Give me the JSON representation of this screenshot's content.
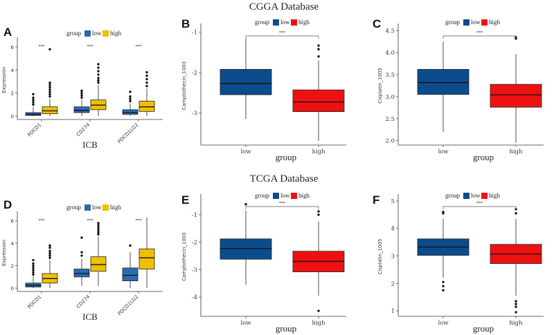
{
  "titles": {
    "top": "CGGA Database",
    "bottom": "TCGA Database"
  },
  "colors": {
    "low_small": "#2b6cb0",
    "high_small": "#f0c000",
    "low": "#0b4c8c",
    "high": "#ee1111"
  },
  "chart_data": [
    {
      "panel": "A",
      "type": "boxplot",
      "database": "CGGA",
      "categories": [
        "PDCD1",
        "CD274",
        "PDCD1LG2"
      ],
      "xlabel": "ICB",
      "ylabel": "Expression",
      "ylim": [
        -0.3,
        6.6
      ],
      "yticks": [
        0,
        2,
        4,
        6
      ],
      "legend": {
        "title": "group",
        "entries": [
          "low",
          "high"
        ],
        "placement": "top"
      },
      "significance": [
        "***",
        "***",
        "***"
      ],
      "series": [
        {
          "name": "low",
          "boxes": [
            {
              "min": 0,
              "q1": 0.05,
              "median": 0.15,
              "q3": 0.3,
              "max": 0.8,
              "outliers": [
                1,
                1.2,
                1.4,
                1.6,
                1.9
              ]
            },
            {
              "min": 0,
              "q1": 0.3,
              "median": 0.5,
              "q3": 0.8,
              "max": 1.4,
              "outliers": [
                1.6,
                1.8,
                2,
                2.2
              ]
            },
            {
              "min": 0,
              "q1": 0.15,
              "median": 0.3,
              "q3": 0.55,
              "max": 1.1,
              "outliers": [
                1.3,
                1.5,
                1.7,
                2.1
              ]
            }
          ]
        },
        {
          "name": "high",
          "boxes": [
            {
              "min": 0,
              "q1": 0.2,
              "median": 0.45,
              "q3": 0.8,
              "max": 1.5,
              "outliers": [
                1.7,
                1.9,
                2.1,
                2.3,
                2.5,
                2.7,
                2.9,
                5.8
              ]
            },
            {
              "min": 0,
              "q1": 0.55,
              "median": 0.95,
              "q3": 1.4,
              "max": 2.7,
              "outliers": [
                2.9,
                3.1,
                3.3,
                3.6,
                3.9,
                4.2,
                4.5
              ]
            },
            {
              "min": 0,
              "q1": 0.4,
              "median": 0.8,
              "q3": 1.3,
              "max": 2.4,
              "outliers": [
                2.6,
                2.9,
                3.2,
                3.5,
                3.8
              ]
            }
          ]
        }
      ]
    },
    {
      "panel": "B",
      "type": "boxplot",
      "database": "CGGA",
      "categories": [
        "low",
        "high"
      ],
      "xlabel": "group",
      "ylabel": "Camptothecin_1003",
      "ylim": [
        -3.8,
        -0.85
      ],
      "yticks": [
        -1,
        -2,
        -3
      ],
      "legend": {
        "title": "group",
        "entries": [
          "low",
          "high"
        ]
      },
      "significance": "***",
      "boxes": [
        {
          "name": "low",
          "min": -3.15,
          "q1": -2.55,
          "median": -2.27,
          "q3": -1.92,
          "max": -1.15,
          "outliers": []
        },
        {
          "name": "high",
          "min": -3.7,
          "q1": -2.97,
          "median": -2.73,
          "q3": -2.43,
          "max": -1.7,
          "outliers": [
            -1.6,
            -1.42,
            -1.33
          ]
        }
      ]
    },
    {
      "panel": "C",
      "type": "boxplot",
      "database": "CGGA",
      "categories": [
        "low",
        "high"
      ],
      "xlabel": "group",
      "ylabel": "Cisplatin_1005",
      "ylim": [
        1.9,
        4.6
      ],
      "yticks": [
        2.0,
        2.5,
        3.0,
        3.5,
        4.0,
        4.5
      ],
      "legend": {
        "title": "group",
        "entries": [
          "low",
          "high"
        ]
      },
      "significance": "***",
      "boxes": [
        {
          "name": "low",
          "min": 2.2,
          "q1": 3.05,
          "median": 3.32,
          "q3": 3.62,
          "max": 4.25,
          "outliers": []
        },
        {
          "name": "high",
          "min": 1.95,
          "q1": 2.76,
          "median": 3.04,
          "q3": 3.28,
          "max": 3.97,
          "outliers": [
            4.32,
            4.35
          ]
        }
      ]
    },
    {
      "panel": "D",
      "type": "boxplot",
      "database": "TCGA",
      "categories": [
        "PDCD1",
        "CD274",
        "PDCD1LG2"
      ],
      "xlabel": "ICB",
      "ylabel": "Expression",
      "ylim": [
        -0.3,
        6.6
      ],
      "yticks": [
        0,
        2,
        4,
        6
      ],
      "legend": {
        "title": "group",
        "entries": [
          "low",
          "high"
        ],
        "placement": "top"
      },
      "significance": [
        "***",
        "***",
        "***"
      ],
      "series": [
        {
          "name": "low",
          "boxes": [
            {
              "min": 0,
              "q1": 0.1,
              "median": 0.25,
              "q3": 0.45,
              "max": 1,
              "outliers": [
                1.2,
                1.4,
                1.6,
                1.8,
                2,
                2.2,
                2.5
              ]
            },
            {
              "min": 0.2,
              "q1": 1.0,
              "median": 1.3,
              "q3": 1.7,
              "max": 2.6,
              "outliers": [
                2.9,
                3.2,
                4.5
              ]
            },
            {
              "min": 0,
              "q1": 0.65,
              "median": 1.15,
              "q3": 1.8,
              "max": 3.2,
              "outliers": [
                3.8
              ]
            }
          ]
        },
        {
          "name": "high",
          "boxes": [
            {
              "min": 0,
              "q1": 0.45,
              "median": 0.85,
              "q3": 1.3,
              "max": 2.5,
              "outliers": [
                2.7,
                2.9,
                3.1,
                3.3,
                3.6,
                3.8
              ]
            },
            {
              "min": 0.2,
              "q1": 1.5,
              "median": 2.1,
              "q3": 2.8,
              "max": 4.6,
              "outliers": [
                4.8,
                5.0,
                5.2,
                5.4,
                5.6,
                5.8
              ]
            },
            {
              "min": 0,
              "q1": 1.7,
              "median": 2.7,
              "q3": 3.5,
              "max": 6.3,
              "outliers": []
            }
          ]
        }
      ]
    },
    {
      "panel": "E",
      "type": "boxplot",
      "database": "TCGA",
      "categories": [
        "low",
        "high"
      ],
      "xlabel": "group",
      "ylabel": "Camptothecin_1003",
      "ylim": [
        -4.7,
        -0.35
      ],
      "yticks": [
        -1,
        -2,
        -3,
        -4
      ],
      "legend": {
        "title": "group",
        "entries": [
          "low",
          "high"
        ]
      },
      "significance": "***",
      "boxes": [
        {
          "name": "low",
          "min": -3.55,
          "q1": -2.62,
          "median": -2.23,
          "q3": -1.88,
          "max": -0.85,
          "outliers": [
            -0.62
          ]
        },
        {
          "name": "high",
          "min": -3.95,
          "q1": -3.08,
          "median": -2.7,
          "q3": -2.33,
          "max": -1.25,
          "outliers": [
            -1.0,
            -0.88,
            -4.5
          ]
        }
      ]
    },
    {
      "panel": "F",
      "type": "boxplot",
      "database": "TCGA",
      "categories": [
        "low",
        "high"
      ],
      "xlabel": "group",
      "ylabel": "Cisplatin_1005",
      "ylim": [
        0.8,
        5.15
      ],
      "yticks": [
        1,
        2,
        3,
        4,
        5
      ],
      "legend": {
        "title": "group",
        "entries": [
          "low",
          "high"
        ]
      },
      "significance": "***",
      "boxes": [
        {
          "name": "low",
          "min": 2.2,
          "q1": 3.02,
          "median": 3.32,
          "q3": 3.62,
          "max": 4.35,
          "outliers": [
            4.55,
            4.6,
            2.05,
            1.9,
            1.75
          ]
        },
        {
          "name": "high",
          "min": 1.55,
          "q1": 2.72,
          "median": 3.07,
          "q3": 3.42,
          "max": 4.35,
          "outliers": [
            4.55,
            4.7,
            1.35,
            1.25,
            1.15,
            0.95
          ]
        }
      ]
    }
  ]
}
